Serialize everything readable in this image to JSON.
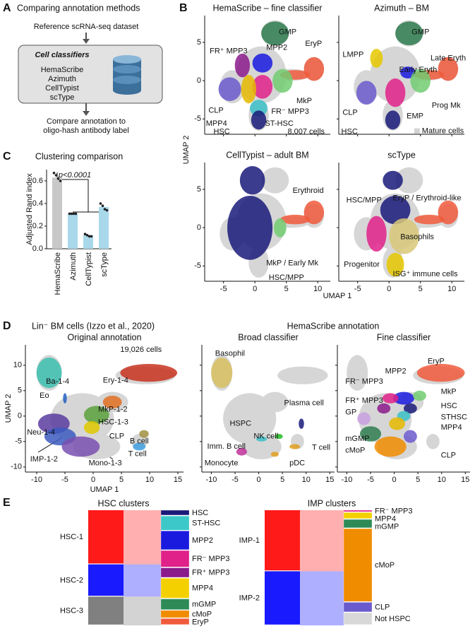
{
  "panel_a": {
    "letter": "A",
    "title": "Comparing annotation methods",
    "input": "Reference scRNA-seq dataset",
    "box_title": "Cell classifiers",
    "classifiers": [
      "HemaScribe",
      "Azimuth",
      "CellTypist",
      "scType"
    ],
    "output": [
      "Compare annotation to",
      "oligo-hash antibody label"
    ]
  },
  "panel_b": {
    "letter": "B",
    "x_label": "UMAP 1",
    "y_label": "UMAP 2",
    "xlim": [
      -8,
      12
    ],
    "ylim": [
      -7,
      8.5
    ],
    "xticks": [
      -5,
      0,
      5,
      10
    ],
    "yticks": [
      -5,
      0,
      5
    ],
    "plots": [
      {
        "title": "HemaScribe – fine classifier",
        "note": "8,007 cells",
        "labels": [
          {
            "text": "GMP",
            "color": "#2e7d4f"
          },
          {
            "text": "EryP",
            "color": "#f05a3c"
          },
          {
            "text": "FR⁺ MPP3",
            "color": "#8b1a8b"
          },
          {
            "text": "MPP2",
            "color": "#1a1adf"
          },
          {
            "text": "MkP",
            "color": "#72cc72"
          },
          {
            "text": "CLP",
            "color": "#6a5acd"
          },
          {
            "text": "FR⁻ MPP3",
            "color": "#e0218a"
          },
          {
            "text": "MPP4",
            "color": "#e6b800"
          },
          {
            "text": "ST-HSC",
            "color": "#3cc0c8"
          },
          {
            "text": "HSC",
            "color": "#1a1a7a"
          }
        ]
      },
      {
        "title": "Azimuth – BM",
        "legend": "Mature cells",
        "legend_color": "#d3d3d3",
        "labels": [
          {
            "text": "GMP",
            "color": "#2e7d4f"
          },
          {
            "text": "LMPP",
            "color": "#e6c800"
          },
          {
            "text": "Late Eryth",
            "color": "#f05a3c"
          },
          {
            "text": "Early Eryth",
            "color": "#1a1adf"
          },
          {
            "text": "Prog Mk",
            "color": "#72cc72"
          },
          {
            "text": "CLP",
            "color": "#6a5acd"
          },
          {
            "text": "EMP",
            "color": "#e0218a"
          },
          {
            "text": "HSC",
            "color": "#1a1a7a"
          }
        ]
      },
      {
        "title": "CellTypist – adult BM",
        "labels": [
          {
            "text": "Erythroid",
            "color": "#f05a3c"
          },
          {
            "text": "MkP / Early Mk",
            "color": "#72cc72"
          },
          {
            "text": "HSC/MPP",
            "color": "#1a1a7a"
          }
        ]
      },
      {
        "title": "scType",
        "labels": [
          {
            "text": "HSC/MPP",
            "color": "#1a1a7a"
          },
          {
            "text": "EryP / Erythroid-like",
            "color": "#f05a3c"
          },
          {
            "text": "Basophils",
            "color": "#d8c878"
          },
          {
            "text": "Progenitor",
            "color": "#e0218a"
          },
          {
            "text": "ISG⁺ immune cells",
            "color": "#e6c800"
          }
        ]
      }
    ]
  },
  "panel_d": {
    "letter": "D",
    "dataset": "Lin⁻ BM cells (Izzo et al., 2020)",
    "header": "HemaScribe annotation",
    "x_label": "UMAP 1",
    "y_label": "UMAP 2",
    "xlim": [
      -12,
      16
    ],
    "ylim": [
      -11,
      14
    ],
    "xticks": [
      -10,
      -5,
      0,
      5,
      10,
      15
    ],
    "yticks": [
      -10,
      -5,
      0,
      5,
      10
    ],
    "plots": [
      {
        "title": "Original annotation",
        "note": "19,026 cells",
        "labels": [
          {
            "text": "Ba-1-4",
            "color": "#111111"
          },
          {
            "text": "Ery-1-4",
            "color": "#111111"
          },
          {
            "text": "Eo",
            "color": "#111111"
          },
          {
            "text": "MkP-1-2",
            "color": "#111111"
          },
          {
            "text": "HSC-1-3",
            "color": "#111111"
          },
          {
            "text": "CLP",
            "color": "#111111"
          },
          {
            "text": "Neu-1-4",
            "color": "#111111"
          },
          {
            "text": "B cell",
            "color": "#111111"
          },
          {
            "text": "T cell",
            "color": "#111111"
          },
          {
            "text": "IMP-1-2",
            "color": "#111111"
          },
          {
            "text": "Mono-1-3",
            "color": "#111111"
          }
        ],
        "blob_colors": [
          "#3cc0b0",
          "#c8321e",
          "#2060c0",
          "#e07020",
          "#5aa03c",
          "#e0c800",
          "#5a3ca0",
          "#a09040",
          "#40a0e0",
          "#3c5ac0",
          "#7a50b0"
        ]
      },
      {
        "title": "Broad classifier",
        "labels": [
          {
            "text": "Basophil",
            "color": "#d8c060"
          },
          {
            "text": "Plasma cell",
            "color": "#1a1a7a"
          },
          {
            "text": "HSPC",
            "color": "#8a8a8a"
          },
          {
            "text": "NK cell",
            "color": "#22bb22"
          },
          {
            "text": "Imm. B cell",
            "color": "#3cc0c8"
          },
          {
            "text": "T cell",
            "color": "#e0a020"
          },
          {
            "text": "Monocyte",
            "color": "#c0309a"
          },
          {
            "text": "pDC",
            "color": "#e0a020"
          }
        ]
      },
      {
        "title": "Fine classifier",
        "labels": [
          {
            "text": "EryP",
            "color": "#f05a3c"
          },
          {
            "text": "MPP2",
            "color": "#1a1adf"
          },
          {
            "text": "FR⁻ MPP3",
            "color": "#e0218a"
          },
          {
            "text": "MkP",
            "color": "#72cc72"
          },
          {
            "text": "FR⁺ MPP3",
            "color": "#8b1a8b"
          },
          {
            "text": "HSC",
            "color": "#1a1a7a"
          },
          {
            "text": "GP",
            "color": "#c8a0e0"
          },
          {
            "text": "STHSC",
            "color": "#3cc0c8"
          },
          {
            "text": "MPP4",
            "color": "#e6b800"
          },
          {
            "text": "mGMP",
            "color": "#2e7d4f"
          },
          {
            "text": "CLP",
            "color": "#6a5acd"
          },
          {
            "text": "cMoP",
            "color": "#f08c00"
          }
        ]
      }
    ]
  },
  "chart_data": [
    {
      "type": "bar",
      "letter": "C",
      "title": "Clustering comparison",
      "y_label": "Adjusted Rand index",
      "categories": [
        "HemaScribe",
        "Azimuth",
        "CellTypist",
        "scType"
      ],
      "values": [
        0.63,
        0.31,
        0.12,
        0.37
      ],
      "colors": [
        "#c8c8c8",
        "#a8d8ea",
        "#a8d8ea",
        "#a8d8ea"
      ],
      "replicates": [
        [
          0.67,
          0.65,
          0.62,
          0.6
        ],
        [
          0.31,
          0.31,
          0.31,
          0.31
        ],
        [
          0.13,
          0.12,
          0.11,
          0.11
        ],
        [
          0.4,
          0.38,
          0.35,
          0.34
        ]
      ],
      "point_color": "#222222",
      "annotation": "p<0.0001",
      "ylim": [
        0,
        0.7
      ],
      "yticks": [
        {
          "value": 0,
          "label": "0.0"
        },
        0.2,
        0.4,
        0.6
      ]
    },
    {
      "type": "sankey",
      "letter": "E",
      "title": "HSC clusters",
      "sources": [
        {
          "name": "HSC-1",
          "color": "#ff1a1a",
          "value": 47
        },
        {
          "name": "HSC-2",
          "color": "#1a1aff",
          "value": 28
        },
        {
          "name": "HSC-3",
          "color": "#808080",
          "value": 25
        }
      ],
      "targets": [
        {
          "name": "HSC",
          "color": "#1a1a7a",
          "value": 5
        },
        {
          "name": "ST-HSC",
          "color": "#3cc8c8",
          "value": 13
        },
        {
          "name": "MPP2",
          "color": "#1a1adf",
          "value": 17
        },
        {
          "name": "FR⁻ MPP3",
          "color": "#e0218a",
          "value": 15
        },
        {
          "name": "FR⁺ MPP3",
          "color": "#8b1a8b",
          "value": 9
        },
        {
          "name": "MPP4",
          "color": "#f5d000",
          "value": 18
        },
        {
          "name": "mGMP",
          "color": "#2e8b57",
          "value": 10
        },
        {
          "name": "cMoP",
          "color": "#f08c00",
          "value": 7
        },
        {
          "name": "EryP",
          "color": "#f05a3c",
          "value": 6
        }
      ]
    },
    {
      "type": "sankey",
      "title": "IMP clusters",
      "sources": [
        {
          "name": "IMP-1",
          "color": "#ff1a1a",
          "value": 53
        },
        {
          "name": "IMP-2",
          "color": "#1a1aff",
          "value": 47
        }
      ],
      "targets": [
        {
          "name": "FR⁻ MPP3",
          "color": "#e0218a",
          "value": 2
        },
        {
          "name": "MPP4",
          "color": "#f5d000",
          "value": 6
        },
        {
          "name": "mGMP",
          "color": "#2e8b57",
          "value": 8
        },
        {
          "name": "cMoP",
          "color": "#f08c00",
          "value": 64
        },
        {
          "name": "CLP",
          "color": "#6a5acd",
          "value": 9
        },
        {
          "name": "Not HSPC",
          "color": "#d8d8d8",
          "label_color": "#222222",
          "value": 11
        }
      ]
    }
  ]
}
